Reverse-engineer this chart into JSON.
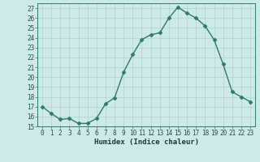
{
  "x": [
    0,
    1,
    2,
    3,
    4,
    5,
    6,
    7,
    8,
    9,
    10,
    11,
    12,
    13,
    14,
    15,
    16,
    17,
    18,
    19,
    20,
    21,
    22,
    23
  ],
  "y": [
    17.0,
    16.3,
    15.7,
    15.8,
    15.3,
    15.3,
    15.8,
    17.3,
    17.9,
    20.5,
    22.3,
    23.8,
    24.3,
    24.5,
    26.0,
    27.1,
    26.5,
    26.0,
    25.2,
    23.8,
    21.3,
    18.5,
    18.0,
    17.5
  ],
  "line_color": "#2d7a6e",
  "marker": "D",
  "markersize": 2.5,
  "linewidth": 1.0,
  "bg_color": "#cdeae6",
  "grid_color": "#b0d4cf",
  "xlabel": "Humidex (Indice chaleur)",
  "ylim": [
    15,
    27.5
  ],
  "xlim": [
    -0.5,
    23.5
  ],
  "yticks": [
    15,
    16,
    17,
    18,
    19,
    20,
    21,
    22,
    23,
    24,
    25,
    26,
    27
  ],
  "xticks": [
    0,
    1,
    2,
    3,
    4,
    5,
    6,
    7,
    8,
    9,
    10,
    11,
    12,
    13,
    14,
    15,
    16,
    17,
    18,
    19,
    20,
    21,
    22,
    23
  ],
  "tick_fontsize": 5.5,
  "label_fontsize": 6.5
}
